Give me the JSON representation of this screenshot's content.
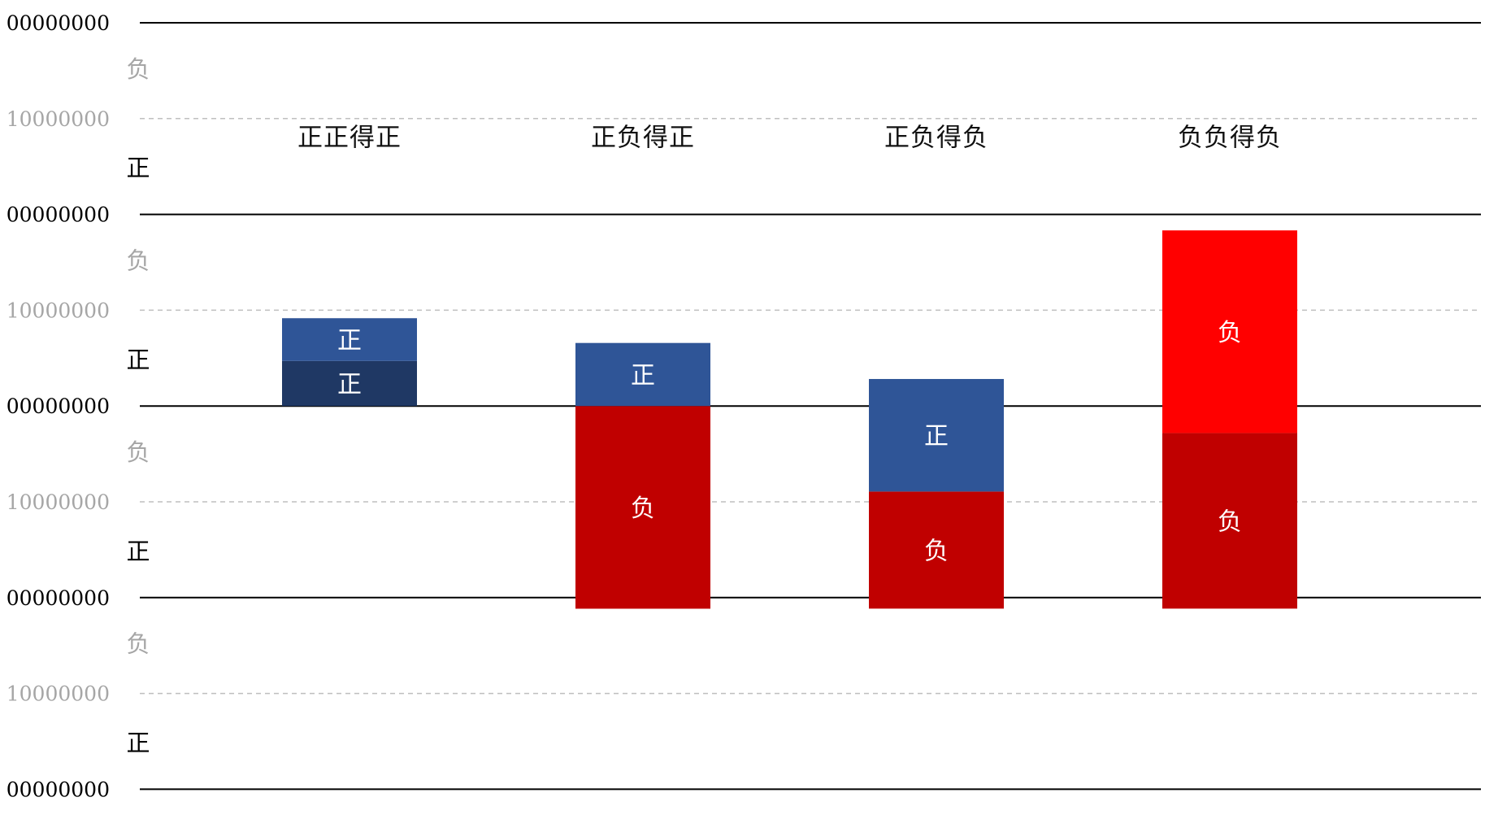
{
  "chart_data": {
    "type": "bar",
    "stacked": true,
    "categories": [
      "正正得正",
      "正负得正",
      "正负得负",
      "负负得负"
    ],
    "category_label_position": "top",
    "axis": {
      "ylim": [
        -2,
        4
      ],
      "solid_gridlines_at": [
        -2,
        0,
        1,
        2,
        4
      ],
      "dashed_gridlines_at": [
        -1,
        1,
        2.5,
        3.5
      ],
      "tick_rows": [
        {
          "y": 4,
          "text": "00000000",
          "style": "dark"
        },
        {
          "y": 3.5,
          "text": "10000000",
          "style": "gray"
        },
        {
          "y": 2,
          "text": "00000000",
          "style": "dark"
        },
        {
          "y": 1,
          "text": "10000000",
          "style": "gray"
        },
        {
          "y": 0,
          "text": "00000000",
          "style": "dark"
        },
        {
          "y": -1,
          "text": "10000000",
          "style": "gray"
        },
        {
          "y": -2,
          "text": "00000000",
          "style": "dark"
        },
        {
          "y": -3,
          "text": "10000000",
          "style": "gray"
        },
        {
          "y": -4,
          "text": "00000000",
          "style": "dark"
        }
      ],
      "side_labels": [
        {
          "y": 3.75,
          "text": "负",
          "style": "gray"
        },
        {
          "y": 3.25,
          "text": "正",
          "style": "dark"
        },
        {
          "y": 1.5,
          "text": "负",
          "style": "gray"
        },
        {
          "y": 0.5,
          "text": "正",
          "style": "dark"
        },
        {
          "y": -0.5,
          "text": "负",
          "style": "gray"
        },
        {
          "y": -1.5,
          "text": "正",
          "style": "dark"
        },
        {
          "y": -2.5,
          "text": "负",
          "style": "gray"
        },
        {
          "y": -3.5,
          "text": "正",
          "style": "dark"
        }
      ]
    },
    "bars": [
      {
        "category": "正正得正",
        "segments": [
          {
            "from": 0,
            "to": 0.2,
            "label": "正",
            "color": "#1f3864"
          },
          {
            "from": 0.2,
            "to": 0.39,
            "label": "正",
            "color": "#2f5597"
          }
        ]
      },
      {
        "category": "正负得正",
        "segments": [
          {
            "from": -0.9,
            "to": 0,
            "label": "负",
            "color": "#c00000"
          },
          {
            "from": 0,
            "to": 0.28,
            "label": "正",
            "color": "#2f5597"
          },
          {
            "from": -0.9,
            "to": -0.1,
            "label": "",
            "color": "#c00000"
          }
        ]
      },
      {
        "category": "正负得负",
        "segments": [
          {
            "from": -0.9,
            "to": -0.38,
            "label": "负",
            "color": "#c00000"
          },
          {
            "from": -0.38,
            "to": 0.12,
            "label": "正",
            "color": "#2f5597"
          }
        ]
      },
      {
        "category": "负负得负",
        "segments": [
          {
            "from": -0.9,
            "to": -0.12,
            "label": "负",
            "color": "#c00000"
          },
          {
            "from": -0.12,
            "to": 0.78,
            "label": "负",
            "color": "#ff0000"
          }
        ]
      }
    ],
    "colors": {
      "positive_dark": "#1f3864",
      "positive": "#2f5597",
      "negative_dark": "#c00000",
      "negative_bright": "#ff0000",
      "label_text": "#ffffff",
      "tick_gray": "#a6a6a6"
    }
  }
}
